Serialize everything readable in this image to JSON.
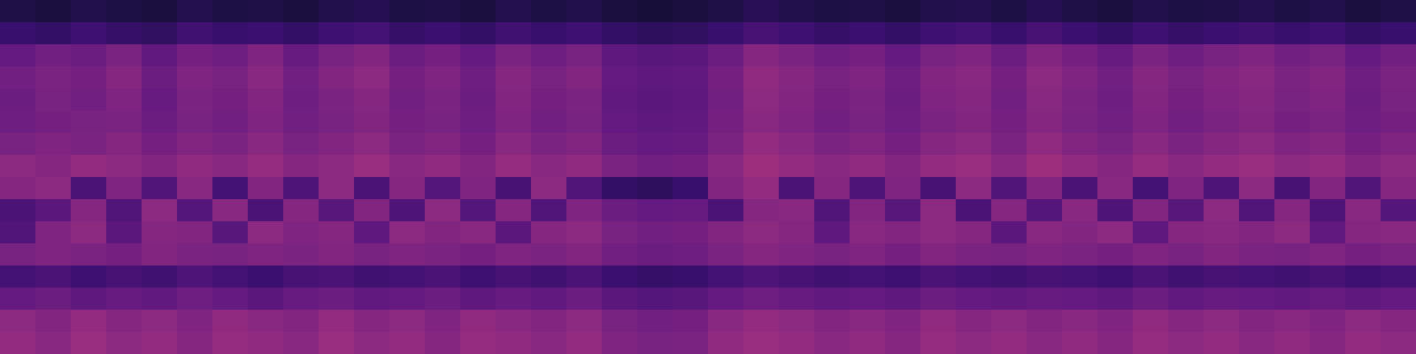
{
  "chart_data": {
    "type": "heatmap",
    "tick_labels": false,
    "cells": [
      [
        0.14,
        0.12,
        0.15,
        0.13,
        0.12,
        0.16,
        0.13,
        0.14,
        0.12,
        0.15,
        0.17,
        0.13,
        0.14,
        0.12,
        0.16,
        0.13,
        0.15,
        0.12,
        0.11,
        0.12,
        0.14,
        0.18,
        0.15,
        0.13,
        0.14,
        0.12,
        0.15,
        0.16,
        0.13,
        0.17,
        0.14,
        0.12,
        0.15,
        0.13,
        0.14,
        0.16,
        0.13,
        0.15,
        0.12,
        0.14
      ],
      [
        0.24,
        0.22,
        0.26,
        0.23,
        0.21,
        0.27,
        0.24,
        0.25,
        0.22,
        0.26,
        0.28,
        0.23,
        0.25,
        0.22,
        0.27,
        0.24,
        0.26,
        0.22,
        0.2,
        0.21,
        0.24,
        0.29,
        0.26,
        0.23,
        0.25,
        0.22,
        0.26,
        0.28,
        0.24,
        0.29,
        0.25,
        0.22,
        0.26,
        0.23,
        0.25,
        0.27,
        0.24,
        0.26,
        0.22,
        0.24
      ],
      [
        0.38,
        0.42,
        0.4,
        0.45,
        0.37,
        0.43,
        0.41,
        0.46,
        0.39,
        0.44,
        0.47,
        0.4,
        0.43,
        0.38,
        0.45,
        0.41,
        0.44,
        0.36,
        0.34,
        0.35,
        0.4,
        0.48,
        0.45,
        0.41,
        0.43,
        0.38,
        0.44,
        0.46,
        0.4,
        0.47,
        0.43,
        0.39,
        0.45,
        0.41,
        0.44,
        0.46,
        0.42,
        0.44,
        0.38,
        0.42
      ],
      [
        0.42,
        0.45,
        0.43,
        0.48,
        0.4,
        0.46,
        0.44,
        0.49,
        0.42,
        0.47,
        0.5,
        0.43,
        0.46,
        0.41,
        0.48,
        0.44,
        0.47,
        0.38,
        0.36,
        0.37,
        0.43,
        0.51,
        0.48,
        0.44,
        0.46,
        0.41,
        0.47,
        0.49,
        0.43,
        0.5,
        0.46,
        0.42,
        0.48,
        0.44,
        0.47,
        0.49,
        0.45,
        0.47,
        0.41,
        0.45
      ],
      [
        0.4,
        0.44,
        0.42,
        0.46,
        0.39,
        0.45,
        0.43,
        0.47,
        0.41,
        0.45,
        0.48,
        0.42,
        0.45,
        0.4,
        0.47,
        0.43,
        0.45,
        0.37,
        0.35,
        0.36,
        0.42,
        0.5,
        0.47,
        0.43,
        0.45,
        0.4,
        0.46,
        0.48,
        0.42,
        0.49,
        0.45,
        0.41,
        0.47,
        0.43,
        0.46,
        0.48,
        0.44,
        0.46,
        0.4,
        0.44
      ],
      [
        0.41,
        0.43,
        0.44,
        0.45,
        0.4,
        0.44,
        0.42,
        0.46,
        0.42,
        0.44,
        0.47,
        0.43,
        0.44,
        0.41,
        0.46,
        0.42,
        0.44,
        0.38,
        0.36,
        0.37,
        0.43,
        0.49,
        0.46,
        0.42,
        0.44,
        0.41,
        0.45,
        0.47,
        0.43,
        0.48,
        0.44,
        0.42,
        0.46,
        0.42,
        0.45,
        0.47,
        0.43,
        0.45,
        0.41,
        0.43
      ],
      [
        0.44,
        0.46,
        0.45,
        0.48,
        0.43,
        0.47,
        0.45,
        0.49,
        0.44,
        0.47,
        0.5,
        0.45,
        0.47,
        0.43,
        0.49,
        0.45,
        0.47,
        0.4,
        0.38,
        0.39,
        0.45,
        0.52,
        0.49,
        0.45,
        0.47,
        0.43,
        0.48,
        0.5,
        0.45,
        0.51,
        0.47,
        0.44,
        0.49,
        0.45,
        0.48,
        0.5,
        0.46,
        0.48,
        0.43,
        0.46
      ],
      [
        0.5,
        0.48,
        0.52,
        0.5,
        0.47,
        0.51,
        0.49,
        0.53,
        0.48,
        0.5,
        0.54,
        0.49,
        0.51,
        0.47,
        0.53,
        0.49,
        0.51,
        0.45,
        0.42,
        0.43,
        0.49,
        0.55,
        0.52,
        0.49,
        0.51,
        0.47,
        0.52,
        0.54,
        0.49,
        0.55,
        0.51,
        0.48,
        0.53,
        0.49,
        0.52,
        0.54,
        0.5,
        0.52,
        0.47,
        0.5
      ],
      [
        0.48,
        0.5,
        0.3,
        0.46,
        0.32,
        0.49,
        0.28,
        0.47,
        0.31,
        0.5,
        0.3,
        0.48,
        0.33,
        0.46,
        0.29,
        0.5,
        0.32,
        0.22,
        0.2,
        0.24,
        0.47,
        0.52,
        0.3,
        0.48,
        0.31,
        0.46,
        0.29,
        0.5,
        0.32,
        0.47,
        0.3,
        0.49,
        0.28,
        0.46,
        0.31,
        0.5,
        0.29,
        0.47,
        0.32,
        0.48
      ],
      [
        0.3,
        0.35,
        0.48,
        0.32,
        0.5,
        0.33,
        0.49,
        0.3,
        0.48,
        0.34,
        0.47,
        0.31,
        0.5,
        0.33,
        0.48,
        0.32,
        0.46,
        0.4,
        0.38,
        0.39,
        0.3,
        0.48,
        0.49,
        0.32,
        0.47,
        0.34,
        0.5,
        0.3,
        0.48,
        0.33,
        0.49,
        0.31,
        0.47,
        0.34,
        0.5,
        0.32,
        0.48,
        0.31,
        0.49,
        0.33
      ],
      [
        0.32,
        0.46,
        0.5,
        0.35,
        0.48,
        0.47,
        0.34,
        0.5,
        0.46,
        0.48,
        0.36,
        0.5,
        0.47,
        0.49,
        0.35,
        0.48,
        0.5,
        0.44,
        0.42,
        0.43,
        0.47,
        0.5,
        0.48,
        0.36,
        0.49,
        0.47,
        0.5,
        0.48,
        0.35,
        0.49,
        0.47,
        0.5,
        0.36,
        0.48,
        0.49,
        0.47,
        0.5,
        0.37,
        0.48,
        0.49
      ],
      [
        0.44,
        0.46,
        0.45,
        0.43,
        0.47,
        0.45,
        0.44,
        0.46,
        0.45,
        0.47,
        0.44,
        0.46,
        0.45,
        0.43,
        0.46,
        0.45,
        0.47,
        0.42,
        0.4,
        0.41,
        0.45,
        0.48,
        0.46,
        0.44,
        0.46,
        0.43,
        0.47,
        0.45,
        0.44,
        0.46,
        0.45,
        0.43,
        0.46,
        0.44,
        0.47,
        0.45,
        0.44,
        0.46,
        0.43,
        0.45
      ],
      [
        0.28,
        0.3,
        0.26,
        0.29,
        0.27,
        0.31,
        0.28,
        0.25,
        0.29,
        0.3,
        0.27,
        0.28,
        0.3,
        0.26,
        0.29,
        0.27,
        0.3,
        0.25,
        0.23,
        0.24,
        0.28,
        0.31,
        0.29,
        0.27,
        0.28,
        0.26,
        0.3,
        0.28,
        0.27,
        0.29,
        0.28,
        0.26,
        0.3,
        0.27,
        0.29,
        0.28,
        0.27,
        0.29,
        0.26,
        0.28
      ],
      [
        0.38,
        0.4,
        0.36,
        0.39,
        0.37,
        0.41,
        0.38,
        0.35,
        0.39,
        0.4,
        0.37,
        0.38,
        0.4,
        0.36,
        0.39,
        0.37,
        0.4,
        0.35,
        0.33,
        0.34,
        0.38,
        0.41,
        0.39,
        0.37,
        0.38,
        0.36,
        0.4,
        0.38,
        0.37,
        0.39,
        0.38,
        0.36,
        0.4,
        0.37,
        0.39,
        0.38,
        0.37,
        0.39,
        0.36,
        0.38
      ],
      [
        0.5,
        0.47,
        0.52,
        0.48,
        0.5,
        0.46,
        0.51,
        0.49,
        0.47,
        0.52,
        0.48,
        0.5,
        0.46,
        0.51,
        0.49,
        0.47,
        0.5,
        0.44,
        0.42,
        0.43,
        0.49,
        0.52,
        0.5,
        0.47,
        0.49,
        0.46,
        0.51,
        0.48,
        0.5,
        0.47,
        0.49,
        0.46,
        0.51,
        0.48,
        0.5,
        0.47,
        0.49,
        0.46,
        0.5,
        0.48
      ],
      [
        0.52,
        0.49,
        0.54,
        0.5,
        0.52,
        0.48,
        0.53,
        0.51,
        0.49,
        0.54,
        0.5,
        0.52,
        0.48,
        0.53,
        0.51,
        0.49,
        0.52,
        0.46,
        0.44,
        0.45,
        0.51,
        0.54,
        0.52,
        0.49,
        0.51,
        0.48,
        0.53,
        0.5,
        0.52,
        0.49,
        0.51,
        0.48,
        0.53,
        0.5,
        0.52,
        0.49,
        0.51,
        0.48,
        0.52,
        0.5
      ]
    ]
  }
}
